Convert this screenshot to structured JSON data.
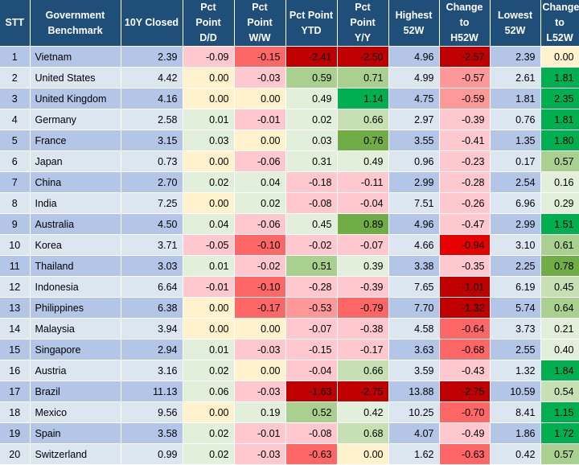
{
  "headers": {
    "stt": "STT",
    "benchmark_l1": "Government",
    "benchmark_l2": "Benchmark",
    "closed": "10Y Closed",
    "dd_l1": "Pct",
    "dd_l2": "Point",
    "dd_l3": "D/D",
    "ww_l1": "Pct",
    "ww_l2": "Point",
    "ww_l3": "W/W",
    "ytd_l1": "Pct Point",
    "ytd_l2": "YTD",
    "yy_l1": "Pct",
    "yy_l2": "Point",
    "yy_l3": "Y/Y",
    "h52_l1": "Highest",
    "h52_l2": "52W",
    "ch52_l1": "Change",
    "ch52_l2": "to",
    "ch52_l3": "H52W",
    "l52_l1": "Lowest",
    "l52_l2": "52W",
    "cl52_l1": "Change",
    "cl52_l2": "to",
    "cl52_l3": "L52W"
  },
  "rows": [
    {
      "stt": "1",
      "name": "Vietnam",
      "closed": "2.39",
      "dd": "-0.09",
      "ww": "-0.15",
      "ytd": "-2.41",
      "yy": "-2.50",
      "h52": "4.96",
      "ch52": "-2.57",
      "l52": "2.39",
      "cl52": "0.00"
    },
    {
      "stt": "2",
      "name": "United States",
      "closed": "4.42",
      "dd": "0.00",
      "ww": "-0.03",
      "ytd": "0.59",
      "yy": "0.71",
      "h52": "4.99",
      "ch52": "-0.57",
      "l52": "2.61",
      "cl52": "1.81"
    },
    {
      "stt": "3",
      "name": "United Kingdom",
      "closed": "4.16",
      "dd": "0.00",
      "ww": "0.00",
      "ytd": "0.49",
      "yy": "1.14",
      "h52": "4.75",
      "ch52": "-0.59",
      "l52": "1.81",
      "cl52": "2.35"
    },
    {
      "stt": "4",
      "name": "Germany",
      "closed": "2.58",
      "dd": "0.01",
      "ww": "-0.01",
      "ytd": "0.02",
      "yy": "0.66",
      "h52": "2.97",
      "ch52": "-0.39",
      "l52": "0.76",
      "cl52": "1.81"
    },
    {
      "stt": "5",
      "name": "France",
      "closed": "3.15",
      "dd": "0.03",
      "ww": "0.00",
      "ytd": "0.03",
      "yy": "0.76",
      "h52": "3.55",
      "ch52": "-0.41",
      "l52": "1.35",
      "cl52": "1.80"
    },
    {
      "stt": "6",
      "name": "Japan",
      "closed": "0.73",
      "dd": "0.00",
      "ww": "-0.06",
      "ytd": "0.31",
      "yy": "0.49",
      "h52": "0.96",
      "ch52": "-0.23",
      "l52": "0.17",
      "cl52": "0.57"
    },
    {
      "stt": "7",
      "name": "China",
      "closed": "2.70",
      "dd": "0.02",
      "ww": "0.04",
      "ytd": "-0.18",
      "yy": "-0.11",
      "h52": "2.99",
      "ch52": "-0.28",
      "l52": "2.54",
      "cl52": "0.16"
    },
    {
      "stt": "8",
      "name": "India",
      "closed": "7.25",
      "dd": "0.00",
      "ww": "0.02",
      "ytd": "-0.08",
      "yy": "-0.04",
      "h52": "7.51",
      "ch52": "-0.26",
      "l52": "6.96",
      "cl52": "0.29"
    },
    {
      "stt": "9",
      "name": "Australia",
      "closed": "4.50",
      "dd": "0.04",
      "ww": "-0.06",
      "ytd": "0.45",
      "yy": "0.89",
      "h52": "4.96",
      "ch52": "-0.47",
      "l52": "2.99",
      "cl52": "1.51"
    },
    {
      "stt": "10",
      "name": "Korea",
      "closed": "3.71",
      "dd": "-0.05",
      "ww": "-0.10",
      "ytd": "-0.02",
      "yy": "-0.07",
      "h52": "4.66",
      "ch52": "-0.94",
      "l52": "3.10",
      "cl52": "0.61"
    },
    {
      "stt": "11",
      "name": "Thailand",
      "closed": "3.03",
      "dd": "0.01",
      "ww": "-0.02",
      "ytd": "0.51",
      "yy": "0.39",
      "h52": "3.38",
      "ch52": "-0.35",
      "l52": "2.25",
      "cl52": "0.78"
    },
    {
      "stt": "12",
      "name": "Indonesia",
      "closed": "6.64",
      "dd": "-0.01",
      "ww": "-0.10",
      "ytd": "-0.28",
      "yy": "-0.39",
      "h52": "7.65",
      "ch52": "-1.01",
      "l52": "6.19",
      "cl52": "0.45"
    },
    {
      "stt": "13",
      "name": "Philippines",
      "closed": "6.38",
      "dd": "0.00",
      "ww": "-0.17",
      "ytd": "-0.53",
      "yy": "-0.79",
      "h52": "7.70",
      "ch52": "-1.32",
      "l52": "5.74",
      "cl52": "0.64"
    },
    {
      "stt": "14",
      "name": "Malaysia",
      "closed": "3.94",
      "dd": "0.00",
      "ww": "0.00",
      "ytd": "-0.07",
      "yy": "-0.38",
      "h52": "4.58",
      "ch52": "-0.64",
      "l52": "3.73",
      "cl52": "0.21"
    },
    {
      "stt": "15",
      "name": "Singapore",
      "closed": "2.94",
      "dd": "0.01",
      "ww": "-0.03",
      "ytd": "-0.15",
      "yy": "-0.17",
      "h52": "3.63",
      "ch52": "-0.68",
      "l52": "2.55",
      "cl52": "0.40"
    },
    {
      "stt": "16",
      "name": "Austria",
      "closed": "3.16",
      "dd": "0.02",
      "ww": "0.00",
      "ytd": "-0.04",
      "yy": "0.66",
      "h52": "3.59",
      "ch52": "-0.43",
      "l52": "1.32",
      "cl52": "1.84"
    },
    {
      "stt": "17",
      "name": "Brazil",
      "closed": "11.13",
      "dd": "0.06",
      "ww": "-0.03",
      "ytd": "-1.63",
      "yy": "-2.75",
      "h52": "13.88",
      "ch52": "-2.75",
      "l52": "10.59",
      "cl52": "0.54"
    },
    {
      "stt": "18",
      "name": "Mexico",
      "closed": "9.56",
      "dd": "0.00",
      "ww": "0.19",
      "ytd": "0.52",
      "yy": "0.42",
      "h52": "10.25",
      "ch52": "-0.70",
      "l52": "8.41",
      "cl52": "1.15"
    },
    {
      "stt": "19",
      "name": "Spain",
      "closed": "3.58",
      "dd": "0.02",
      "ww": "-0.01",
      "ytd": "-0.08",
      "yy": "0.68",
      "h52": "4.07",
      "ch52": "-0.49",
      "l52": "1.86",
      "cl52": "1.72"
    },
    {
      "stt": "20",
      "name": "Switzerland",
      "closed": "0.99",
      "dd": "0.02",
      "ww": "-0.03",
      "ytd": "-0.63",
      "yy": "0.00",
      "h52": "1.62",
      "ch52": "-0.63",
      "l52": "0.42",
      "cl52": "0.57"
    }
  ],
  "colors": {
    "header_bg": "#1f4e79",
    "row_odd": "#b4c6e7",
    "row_even": "#dce6f1",
    "zero": "#fff2cc",
    "pos_light": "#e2efda",
    "pos_mid": "#c6e0b4",
    "pos_strong": "#a9d08e",
    "pos_deep": "#70ad47",
    "pos_max": "#00b050",
    "neg_light": "#ffc7ce",
    "neg_mid": "#ff9999",
    "neg_strong": "#ff6666",
    "neg_deep": "#e60000",
    "neg_max": "#c00000"
  }
}
